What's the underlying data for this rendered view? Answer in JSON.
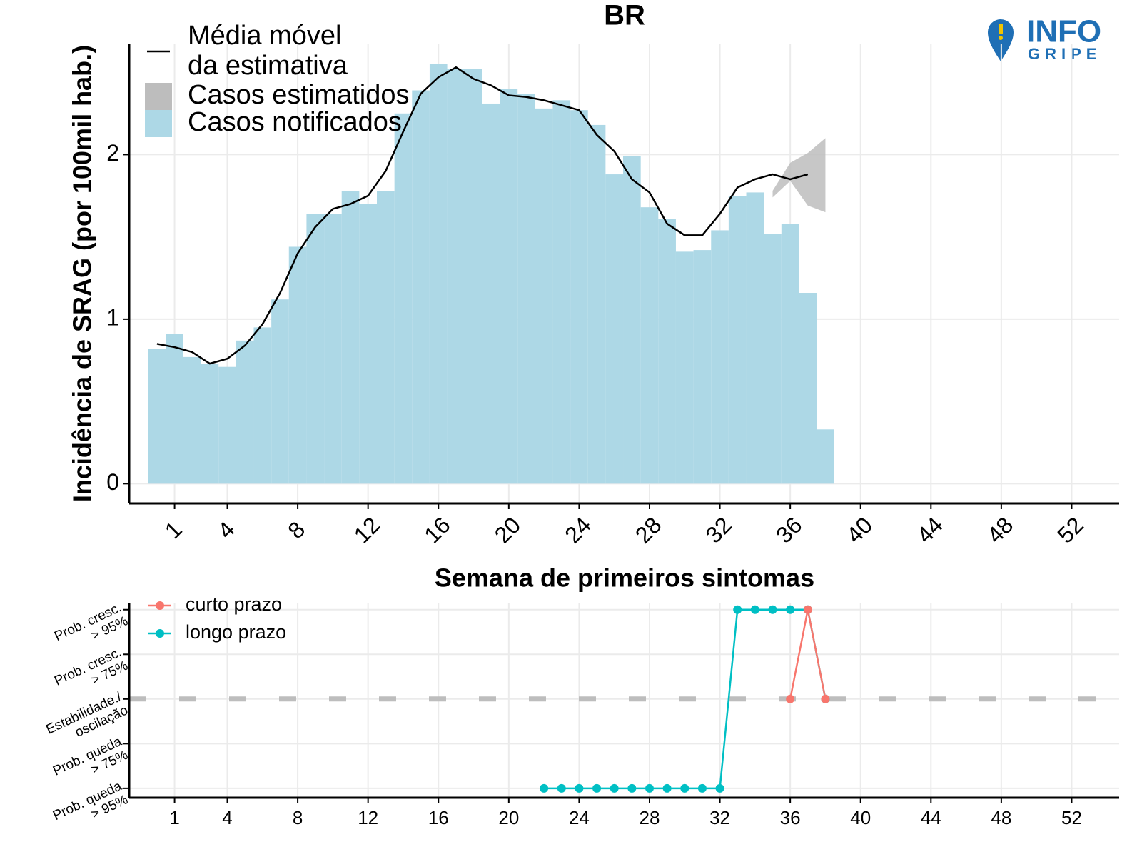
{
  "chart_data": [
    {
      "type": "combo",
      "title": "BR",
      "x_label": "Semana de primeiros sintomas",
      "y_label": "Incidência de SRAG (por 100mil hab.)",
      "xlim": [
        -1.58,
        54.7
      ],
      "xticks": [
        1,
        4,
        8,
        12,
        16,
        20,
        24,
        28,
        32,
        36,
        40,
        44,
        48,
        52
      ],
      "ylim": [
        -0.12,
        2.67
      ],
      "yticks": [
        0,
        1,
        2
      ],
      "grid": true,
      "series": [
        {
          "name": "Média móvel\nda estimativa",
          "type": "line",
          "color": "#000000",
          "x": [
            0,
            1,
            2,
            3,
            4,
            5,
            6,
            7,
            8,
            9,
            10,
            11,
            12,
            13,
            14,
            15,
            16,
            17,
            18,
            19,
            20,
            21,
            22,
            23,
            24,
            25,
            26,
            27,
            28,
            29,
            30,
            31,
            32,
            33,
            34,
            35,
            36,
            37
          ],
          "values": [
            0.85,
            0.83,
            0.8,
            0.73,
            0.76,
            0.84,
            0.97,
            1.16,
            1.4,
            1.56,
            1.67,
            1.7,
            1.75,
            1.9,
            2.14,
            2.37,
            2.47,
            2.53,
            2.46,
            2.42,
            2.36,
            2.35,
            2.33,
            2.3,
            2.27,
            2.12,
            2.02,
            1.85,
            1.77,
            1.58,
            1.51,
            1.51,
            1.64,
            1.8,
            1.85,
            1.88,
            1.85,
            1.88
          ]
        },
        {
          "name": "Casos estimatidos",
          "type": "band",
          "color": "#bdbdbd",
          "x": [
            35,
            36,
            37,
            38
          ],
          "lower": [
            1.74,
            1.84,
            1.69,
            1.65
          ],
          "upper": [
            1.78,
            1.95,
            2.01,
            2.1
          ]
        },
        {
          "name": "Casos notificados",
          "type": "bar",
          "color": "#add8e6",
          "x": [
            0,
            1,
            2,
            3,
            4,
            5,
            6,
            7,
            8,
            9,
            10,
            11,
            12,
            13,
            14,
            15,
            16,
            17,
            18,
            19,
            20,
            21,
            22,
            23,
            24,
            25,
            26,
            27,
            28,
            29,
            30,
            31,
            32,
            33,
            34,
            35,
            36,
            37,
            38
          ],
          "values": [
            0.82,
            0.91,
            0.77,
            0.73,
            0.71,
            0.87,
            0.95,
            1.12,
            1.44,
            1.64,
            1.64,
            1.78,
            1.7,
            1.78,
            2.25,
            2.39,
            2.55,
            2.52,
            2.52,
            2.31,
            2.4,
            2.37,
            2.28,
            2.33,
            2.27,
            2.18,
            1.88,
            1.99,
            1.68,
            1.61,
            1.41,
            1.42,
            1.54,
            1.75,
            1.77,
            1.52,
            1.58,
            1.16,
            0.33
          ]
        }
      ]
    },
    {
      "type": "line",
      "xlim": [
        -1.58,
        54.7
      ],
      "xticks": [
        1,
        4,
        8,
        12,
        16,
        20,
        24,
        28,
        32,
        36,
        40,
        44,
        48,
        52
      ],
      "ylim": [
        -2.21,
        2.14
      ],
      "yticks": [
        {
          "value": 2,
          "label": "Prob. cresc.\n> 95%"
        },
        {
          "value": 1,
          "label": "Prob. cresc.\n> 75%"
        },
        {
          "value": 0,
          "label": "Estabilidade./\noscilação"
        },
        {
          "value": -1,
          "label": "Prob. queda\n> 75%"
        },
        {
          "value": -2,
          "label": "Prob. queda\n> 95%"
        }
      ],
      "reference_line": 0,
      "grid": true,
      "series": [
        {
          "name": "longo prazo",
          "color": "#00BFC4",
          "x": [
            22,
            23,
            24,
            25,
            26,
            27,
            28,
            29,
            30,
            31,
            32,
            33,
            34,
            35,
            36,
            37,
            38
          ],
          "values": [
            -2,
            -2,
            -2,
            -2,
            -2,
            -2,
            -2,
            -2,
            -2,
            -2,
            -2,
            2,
            2,
            2,
            2,
            2,
            0
          ]
        },
        {
          "name": "curto prazo",
          "color": "#F8766D",
          "x": [
            36,
            37,
            38
          ],
          "values": [
            0,
            2,
            0
          ]
        }
      ]
    }
  ],
  "logo": {
    "line1": "INFO",
    "line2": "GRIPE"
  }
}
